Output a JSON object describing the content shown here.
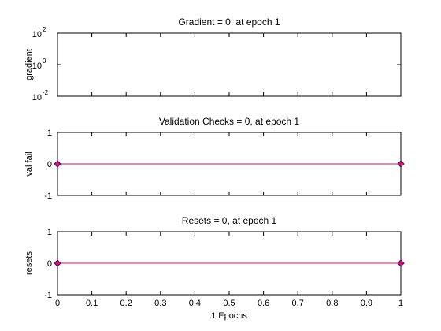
{
  "colors": {
    "background": "#ffffff",
    "axis": "#000000",
    "marker_fill": "#d4145a",
    "marker_stroke": "#4a0a7a"
  },
  "chart_data": [
    {
      "type": "line",
      "title": "Gradient = 0, at epoch 1",
      "ylabel": "gradient",
      "xlim": [
        0,
        1
      ],
      "ylim": [
        0.01,
        100
      ],
      "yscale": "log",
      "yticks": [
        {
          "value": 0.01,
          "base": "10",
          "exp": "-2"
        },
        {
          "value": 1,
          "base": "10",
          "exp": "0"
        },
        {
          "value": 100,
          "base": "10",
          "exp": "2"
        }
      ],
      "x": [],
      "values": []
    },
    {
      "type": "line",
      "title": "Validation Checks = 0, at epoch 1",
      "ylabel": "val fail",
      "xlim": [
        0,
        1
      ],
      "ylim": [
        -1,
        1
      ],
      "yticks": [
        "-1",
        "0",
        "1"
      ],
      "x": [
        0,
        1
      ],
      "values": [
        0,
        0
      ]
    },
    {
      "type": "line",
      "title": "Resets = 0, at epoch 1",
      "ylabel": "resets",
      "xlabel": "1 Epochs",
      "xlim": [
        0,
        1
      ],
      "ylim": [
        -1,
        1
      ],
      "yticks": [
        "-1",
        "0",
        "1"
      ],
      "xticks": [
        "0",
        "0.1",
        "0.2",
        "0.3",
        "0.4",
        "0.5",
        "0.6",
        "0.7",
        "0.8",
        "0.9",
        "1"
      ],
      "x": [
        0,
        1
      ],
      "values": [
        0,
        0
      ]
    }
  ]
}
